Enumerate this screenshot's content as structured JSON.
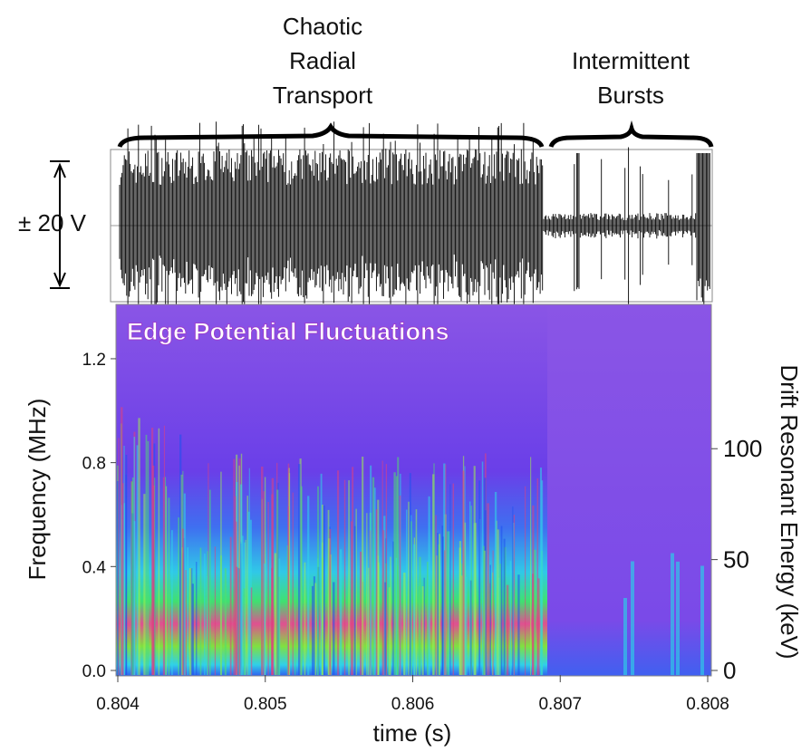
{
  "chart_data": {
    "type": "spectrogram",
    "annotations": [
      {
        "lines": [
          "Chaotic",
          "Radial",
          "Transport"
        ]
      },
      {
        "lines": [
          "Intermittent",
          "Bursts"
        ]
      }
    ],
    "scale_label": "± 20 V",
    "title": "Edge Potential Fluctuations",
    "xlabel": "time (s)",
    "ylabel": "Frequency (MHz)",
    "y2label": "Drift Resonant Energy (keV)",
    "xlim": [
      0.804,
      0.808
    ],
    "xticks": [
      0.804,
      0.805,
      0.806,
      0.807,
      0.808
    ],
    "ylim": [
      0,
      1.4
    ],
    "yticks": [
      {
        "value": 0,
        "label": "0.0"
      },
      0.4,
      0.8,
      1.2
    ],
    "y2lim": [
      0,
      164
    ],
    "y2ticks": [
      0,
      50,
      100
    ]
  }
}
